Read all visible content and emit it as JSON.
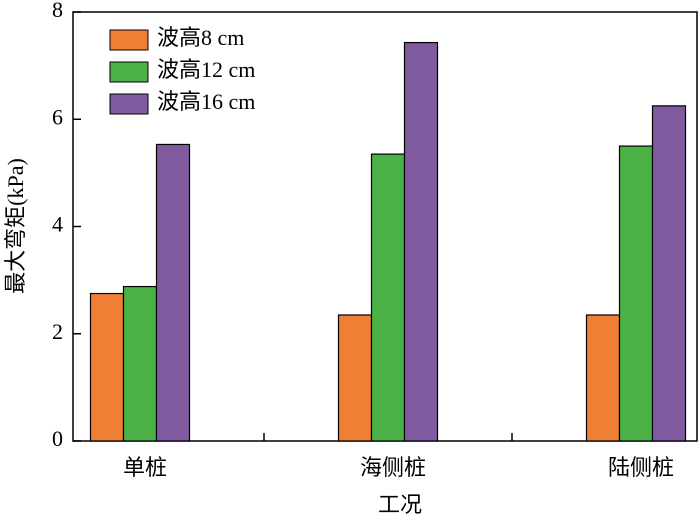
{
  "chart_data": {
    "type": "bar",
    "x_label": "工况",
    "y_label": "最大弯矩(kPa)",
    "categories": [
      "单桩",
      "海侧桩",
      "陆侧桩"
    ],
    "series": [
      {
        "name": "波高8 cm",
        "color": "#f07f36",
        "values": [
          2.75,
          2.35,
          2.35
        ]
      },
      {
        "name": "波高12 cm",
        "color": "#4cb146",
        "values": [
          2.88,
          5.35,
          5.5
        ]
      },
      {
        "name": "波高16 cm",
        "color": "#7f5a9f",
        "values": [
          5.53,
          7.43,
          6.25
        ]
      }
    ],
    "ylim": [
      0,
      8
    ],
    "yticks": [
      0,
      2,
      4,
      6,
      8
    ],
    "legend": "upper left"
  }
}
